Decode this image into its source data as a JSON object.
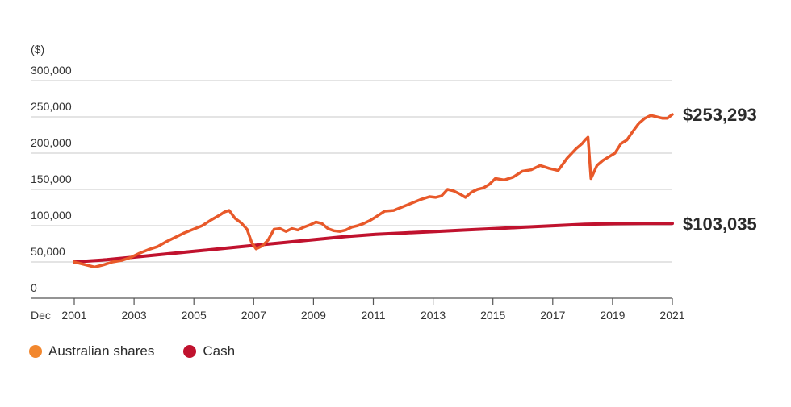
{
  "chart_data": {
    "type": "line",
    "unit_label": "($)",
    "x_prefix_label": "Dec",
    "x_ticks": [
      "2001",
      "2003",
      "2005",
      "2007",
      "2009",
      "2011",
      "2013",
      "2015",
      "2017",
      "2019",
      "2021"
    ],
    "y_ticks": [
      "0",
      "50,000",
      "100,000",
      "150,000",
      "200,000",
      "250,000",
      "300,000"
    ],
    "ylim": [
      0,
      300000
    ],
    "xlim": [
      2001.92,
      2021.92
    ],
    "grid": true,
    "legend_position": "bottom-left",
    "series": [
      {
        "name": "Australian shares",
        "color": "#e8592a",
        "legend_color": "#f2872e",
        "end_label": "$253,293",
        "x": [
          2001.92,
          2002.3,
          2002.6,
          2002.9,
          2003.2,
          2003.5,
          2003.8,
          2004.1,
          2004.4,
          2004.7,
          2005.0,
          2005.3,
          2005.6,
          2005.9,
          2006.2,
          2006.5,
          2006.8,
          2006.95,
          2007.1,
          2007.3,
          2007.5,
          2007.7,
          2007.85,
          2008.0,
          2008.2,
          2008.4,
          2008.6,
          2008.8,
          2009.0,
          2009.2,
          2009.4,
          2009.6,
          2009.8,
          2010.0,
          2010.2,
          2010.4,
          2010.6,
          2010.8,
          2011.0,
          2011.2,
          2011.4,
          2011.6,
          2011.8,
          2012.0,
          2012.3,
          2012.6,
          2012.9,
          2013.2,
          2013.5,
          2013.8,
          2014.0,
          2014.2,
          2014.4,
          2014.6,
          2014.8,
          2015.0,
          2015.2,
          2015.4,
          2015.6,
          2015.8,
          2016.0,
          2016.3,
          2016.6,
          2016.9,
          2017.2,
          2017.5,
          2017.8,
          2018.1,
          2018.4,
          2018.7,
          2018.9,
          2019.0,
          2019.1,
          2019.2,
          2019.4,
          2019.6,
          2019.8,
          2020.0,
          2020.2,
          2020.4,
          2020.6,
          2020.8,
          2021.0,
          2021.2,
          2021.4,
          2021.6,
          2021.75,
          2021.92
        ],
        "values": [
          50000,
          46000,
          43000,
          46000,
          50000,
          52000,
          56000,
          62000,
          67000,
          71000,
          78000,
          84000,
          90000,
          95000,
          100000,
          108000,
          115000,
          119000,
          121000,
          110000,
          104000,
          95000,
          77000,
          68000,
          72000,
          80000,
          95000,
          96000,
          92000,
          96000,
          94000,
          98000,
          101000,
          105000,
          103000,
          96000,
          93000,
          92000,
          94000,
          98000,
          100000,
          103000,
          107000,
          112000,
          120000,
          121000,
          126000,
          131000,
          136000,
          140000,
          139000,
          141000,
          150000,
          148000,
          144000,
          139000,
          146000,
          150000,
          152000,
          157000,
          165000,
          163000,
          167000,
          175000,
          177000,
          183000,
          179000,
          176000,
          193000,
          206000,
          213000,
          218000,
          222000,
          165000,
          183000,
          190000,
          195000,
          200000,
          213000,
          218000,
          230000,
          241000,
          248000,
          252000,
          250000,
          248000,
          248000,
          253293
        ]
      },
      {
        "name": "Cash",
        "color": "#c0122e",
        "legend_color": "#c0122e",
        "end_label": "$103,035",
        "x": [
          2001.92,
          2003.0,
          2004.0,
          2005.0,
          2006.0,
          2007.0,
          2008.0,
          2009.0,
          2010.0,
          2011.0,
          2012.0,
          2013.0,
          2014.0,
          2015.0,
          2016.0,
          2017.0,
          2018.0,
          2019.0,
          2020.0,
          2021.0,
          2021.92
        ],
        "values": [
          50000,
          53000,
          57000,
          61000,
          65000,
          69000,
          73000,
          77000,
          81000,
          85000,
          88000,
          90000,
          92000,
          94000,
          96000,
          98000,
          100000,
          102000,
          102800,
          103000,
          103035
        ]
      }
    ]
  }
}
